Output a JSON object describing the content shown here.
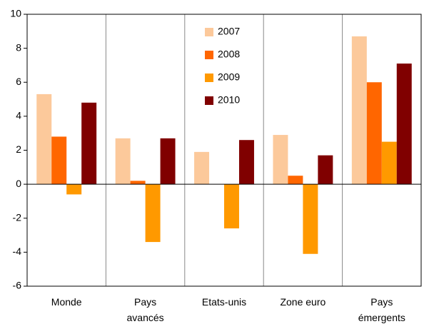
{
  "chart_data": {
    "type": "bar",
    "categories": [
      "Monde",
      "Pays\navancés",
      "Etats-unis",
      "Zone euro",
      "Pays\némergents"
    ],
    "series": [
      {
        "name": "2007",
        "color": "#fcc99b",
        "values": [
          5.3,
          2.7,
          1.9,
          2.9,
          8.7
        ]
      },
      {
        "name": "2008",
        "color": "#ff6600",
        "values": [
          2.8,
          0.2,
          0,
          0.5,
          6.0
        ]
      },
      {
        "name": "2009",
        "color": "#ff9900",
        "values": [
          -0.6,
          -3.4,
          -2.6,
          -4.1,
          2.5
        ]
      },
      {
        "name": "2010",
        "color": "#800000",
        "values": [
          4.8,
          2.7,
          2.6,
          1.7,
          7.1
        ]
      }
    ],
    "ylim": [
      -6,
      10
    ],
    "yticks": [
      -6,
      -4,
      -2,
      0,
      2,
      4,
      6,
      8,
      10
    ],
    "legend": "top",
    "grid": "x"
  }
}
